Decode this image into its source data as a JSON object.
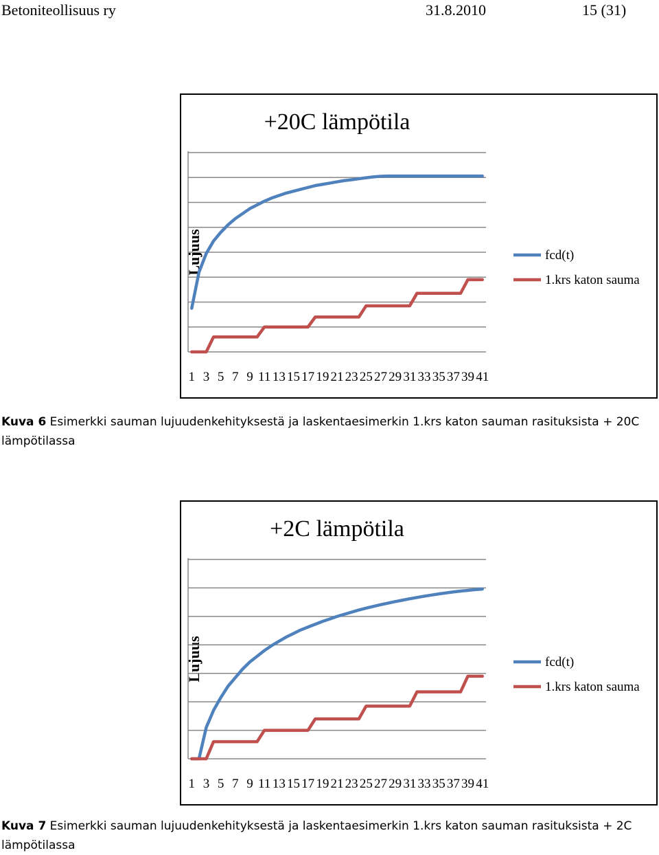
{
  "header": {
    "organization": "Betoniteollisuus ry",
    "date": "31.8.2010",
    "page": "15 (31)"
  },
  "captions": [
    {
      "label": "Kuva 6",
      "text": " Esimerkki sauman lujuudenkehityksestä ja laskentaesimerkin 1.krs katon sauman rasituksista + 20C lämpötilassa"
    },
    {
      "label": "Kuva 7",
      "text": " Esimerkki sauman lujuudenkehityksestä ja laskentaesimerkin 1.krs katon sauman rasituksista + 2C lämpötilassa"
    }
  ],
  "colors": {
    "fcd": "#4F81BD",
    "sauma": "#C0504D",
    "grid": "#888888"
  },
  "chart_data": [
    {
      "type": "line",
      "title": "+20C lämpötila",
      "ylabel": "Lujuus",
      "xlabel": "",
      "ylim": [
        0,
        16
      ],
      "yticks": [
        "0,0",
        "2,0",
        "4,0",
        "6,0",
        "8,0",
        "10,0",
        "12,0",
        "14,0",
        "16,0"
      ],
      "xtick_labels": [
        "1",
        "3",
        "5",
        "7",
        "9",
        "11",
        "13",
        "15",
        "17",
        "19",
        "21",
        "23",
        "25",
        "27",
        "29",
        "31",
        "33",
        "35",
        "37",
        "39",
        "41"
      ],
      "legend_position": "right",
      "grid": true,
      "x": [
        1,
        2,
        3,
        4,
        5,
        6,
        7,
        8,
        9,
        10,
        11,
        12,
        13,
        14,
        15,
        16,
        17,
        18,
        19,
        20,
        21,
        22,
        23,
        24,
        25,
        26,
        27,
        28,
        29,
        30,
        31,
        32,
        33,
        34,
        35,
        36,
        37,
        38,
        39,
        40,
        41
      ],
      "series": [
        {
          "name": "fcd(t)",
          "color": "#4F81BD",
          "values": [
            3.5,
            6.4,
            7.9,
            8.9,
            9.6,
            10.2,
            10.7,
            11.1,
            11.5,
            11.8,
            12.1,
            12.35,
            12.55,
            12.75,
            12.9,
            13.05,
            13.2,
            13.35,
            13.45,
            13.55,
            13.65,
            13.75,
            13.82,
            13.9,
            13.98,
            14.05,
            14.1,
            14.12,
            14.12,
            14.12,
            14.12,
            14.12,
            14.12,
            14.12,
            14.12,
            14.12,
            14.12,
            14.12,
            14.12,
            14.12,
            14.12
          ]
        },
        {
          "name": "1.krs katon sauma",
          "color": "#C0504D",
          "values": [
            0,
            0,
            0,
            1.2,
            1.2,
            1.2,
            1.2,
            1.2,
            1.2,
            1.2,
            2,
            2,
            2,
            2,
            2,
            2,
            2,
            2.8,
            2.8,
            2.8,
            2.8,
            2.8,
            2.8,
            2.8,
            3.7,
            3.7,
            3.7,
            3.7,
            3.7,
            3.7,
            3.7,
            4.7,
            4.7,
            4.7,
            4.7,
            4.7,
            4.7,
            4.7,
            5.8,
            5.8,
            5.8
          ]
        }
      ]
    },
    {
      "type": "line",
      "title": "+2C lämpötila",
      "ylabel": "Lujuus",
      "xlabel": "",
      "ylim": [
        0,
        14
      ],
      "yticks": [
        "0,0",
        "2,0",
        "4,0",
        "6,0",
        "8,0",
        "10,0",
        "12,0",
        "14,0"
      ],
      "xtick_labels": [
        "1",
        "3",
        "5",
        "7",
        "9",
        "11",
        "13",
        "15",
        "17",
        "19",
        "21",
        "23",
        "25",
        "27",
        "29",
        "31",
        "33",
        "35",
        "37",
        "39",
        "41"
      ],
      "legend_position": "right",
      "grid": true,
      "x": [
        1,
        2,
        3,
        4,
        5,
        6,
        7,
        8,
        9,
        10,
        11,
        12,
        13,
        14,
        15,
        16,
        17,
        18,
        19,
        20,
        21,
        22,
        23,
        24,
        25,
        26,
        27,
        28,
        29,
        30,
        31,
        32,
        33,
        34,
        35,
        36,
        37,
        38,
        39,
        40,
        41
      ],
      "series": [
        {
          "name": "fcd(t)",
          "color": "#4F81BD",
          "values": [
            0,
            0,
            2.2,
            3.4,
            4.3,
            5.1,
            5.7,
            6.3,
            6.8,
            7.2,
            7.6,
            7.95,
            8.25,
            8.55,
            8.8,
            9.05,
            9.25,
            9.45,
            9.65,
            9.82,
            10,
            10.15,
            10.3,
            10.45,
            10.58,
            10.7,
            10.82,
            10.93,
            11.04,
            11.14,
            11.24,
            11.33,
            11.42,
            11.5,
            11.58,
            11.65,
            11.72,
            11.78,
            11.83,
            11.88,
            11.92
          ]
        },
        {
          "name": "1.krs katon sauma",
          "color": "#C0504D",
          "values": [
            0,
            0,
            0,
            1.2,
            1.2,
            1.2,
            1.2,
            1.2,
            1.2,
            1.2,
            2,
            2,
            2,
            2,
            2,
            2,
            2,
            2.8,
            2.8,
            2.8,
            2.8,
            2.8,
            2.8,
            2.8,
            3.7,
            3.7,
            3.7,
            3.7,
            3.7,
            3.7,
            3.7,
            4.7,
            4.7,
            4.7,
            4.7,
            4.7,
            4.7,
            4.7,
            5.8,
            5.8,
            5.8
          ]
        }
      ]
    }
  ]
}
